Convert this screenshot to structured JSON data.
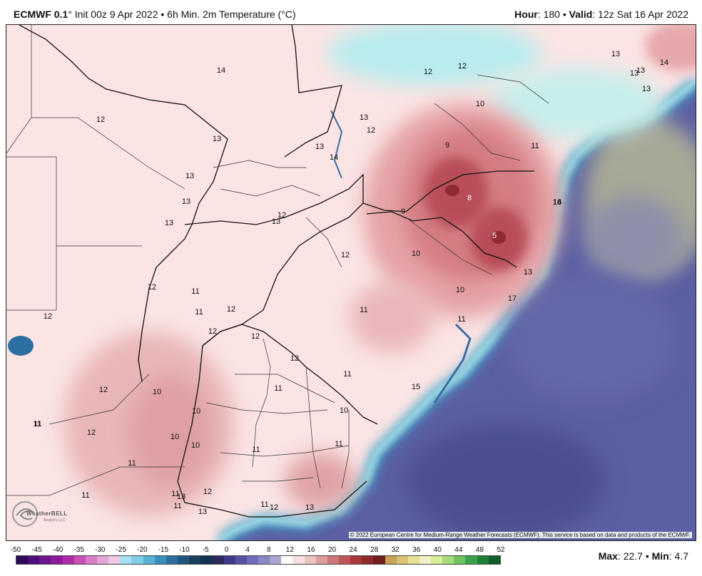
{
  "header": {
    "model": "ECMWF 0.1",
    "degree": "°",
    "init": " Init 00z 9 Apr 2022",
    "bullet": " • ",
    "product": "6h Min. 2m Temperature (°C)",
    "hour_label": "Hour",
    "hour_value": ": 180",
    "valid_label": "Valid",
    "valid_value": ": 12z Sat 16 Apr 2022"
  },
  "map": {
    "contour_labels": [
      {
        "text": "14",
        "light": false
      },
      {
        "text": "12",
        "light": false
      },
      {
        "text": "12",
        "light": false
      },
      {
        "text": "13",
        "light": false
      },
      {
        "text": "13",
        "light": false
      },
      {
        "text": "13",
        "light": false
      },
      {
        "text": "14",
        "light": false
      },
      {
        "text": "12",
        "light": false
      },
      {
        "text": "10",
        "light": false
      },
      {
        "text": "13",
        "light": false
      },
      {
        "text": "12",
        "light": false
      },
      {
        "text": "13",
        "light": false
      },
      {
        "text": "13",
        "light": false
      },
      {
        "text": "9",
        "light": false
      },
      {
        "text": "11",
        "light": false
      },
      {
        "text": "14",
        "light": false
      },
      {
        "text": "13",
        "light": false
      },
      {
        "text": "16",
        "light": false
      },
      {
        "text": "13",
        "light": false
      },
      {
        "text": "8",
        "light": true
      },
      {
        "text": "12",
        "light": false
      },
      {
        "text": "13",
        "light": false
      },
      {
        "text": "9",
        "light": false
      },
      {
        "text": "16",
        "light": false
      },
      {
        "text": "13",
        "light": false
      },
      {
        "text": "5",
        "light": true
      },
      {
        "text": "12",
        "light": false
      },
      {
        "text": "10",
        "light": false
      },
      {
        "text": "13",
        "light": false
      },
      {
        "text": "13",
        "light": false
      },
      {
        "text": "12",
        "light": false
      },
      {
        "text": "11",
        "light": false
      },
      {
        "text": "10",
        "light": false
      },
      {
        "text": "11",
        "light": false
      },
      {
        "text": "12",
        "light": false
      },
      {
        "text": "17",
        "light": false
      },
      {
        "text": "11",
        "light": false
      },
      {
        "text": "12",
        "light": false
      },
      {
        "text": "11",
        "light": false
      },
      {
        "text": "12",
        "light": false
      },
      {
        "text": "12",
        "light": false
      },
      {
        "text": "11",
        "light": false
      },
      {
        "text": "12",
        "light": false
      },
      {
        "text": "10",
        "light": false
      },
      {
        "text": "11",
        "light": false
      },
      {
        "text": "10",
        "light": false
      },
      {
        "text": "15",
        "light": false
      },
      {
        "text": "11",
        "light": false
      },
      {
        "text": "12",
        "light": false
      },
      {
        "text": "10",
        "light": false
      },
      {
        "text": "10",
        "light": false
      },
      {
        "text": "10",
        "light": false
      },
      {
        "text": "11",
        "light": false
      },
      {
        "text": "11",
        "light": false
      },
      {
        "text": "11",
        "light": false
      },
      {
        "text": "11",
        "light": false
      },
      {
        "text": "11",
        "light": false
      },
      {
        "text": "12",
        "light": false
      },
      {
        "text": "11",
        "light": false
      },
      {
        "text": "13",
        "light": false
      },
      {
        "text": "11",
        "light": false
      },
      {
        "text": "11",
        "light": false
      },
      {
        "text": "12",
        "light": false
      },
      {
        "text": "13",
        "light": false
      },
      {
        "text": "12",
        "light": false
      },
      {
        "text": "14",
        "light": false
      },
      {
        "text": "13",
        "light": false
      }
    ],
    "copyright": "© 2022 European Centre for Medium-Range Weather Forecasts (ECMWF). This service is based on data and products of the ECMWF.",
    "logo": {
      "name": "WeatherBELL",
      "sub": "Analytics LLC"
    }
  },
  "colorbar": {
    "ticks": [
      "-50",
      "-45",
      "-40",
      "-35",
      "-30",
      "-25",
      "-20",
      "-15",
      "-10",
      "-5",
      "0",
      "4",
      "8",
      "12",
      "16",
      "20",
      "24",
      "28",
      "32",
      "36",
      "40",
      "44",
      "48",
      "52"
    ],
    "colors": [
      "#2b0a57",
      "#4a0f7a",
      "#6c1491",
      "#8e1a9e",
      "#b02ba8",
      "#c74fb5",
      "#d77ec6",
      "#e4a6d8",
      "#efc9e6",
      "#a7e0f0",
      "#7fcde6",
      "#56b3d6",
      "#3b8fbf",
      "#2b6f9e",
      "#1f567d",
      "#183f5d",
      "#153152",
      "#2b2a5e",
      "#3d3b85",
      "#5552a6",
      "#6f6db8",
      "#8a88c4",
      "#a7a6d2",
      "#ffffff",
      "#f4e2e2",
      "#eac3c3",
      "#dd9e9e",
      "#cf7878",
      "#bf5656",
      "#a83939",
      "#8e2a2a",
      "#6f1e1e",
      "#c5a255",
      "#dcc273",
      "#eadf98",
      "#f4f2c2",
      "#d8ef9a",
      "#a6dd7a",
      "#6fc460",
      "#3aa34a",
      "#1b7f37",
      "#0f5f2b"
    ]
  },
  "footer": {
    "max_label": "Max",
    "max_value": ": 22.7",
    "bullet": " • ",
    "min_label": "Min",
    "min_value": ": 4.7"
  }
}
